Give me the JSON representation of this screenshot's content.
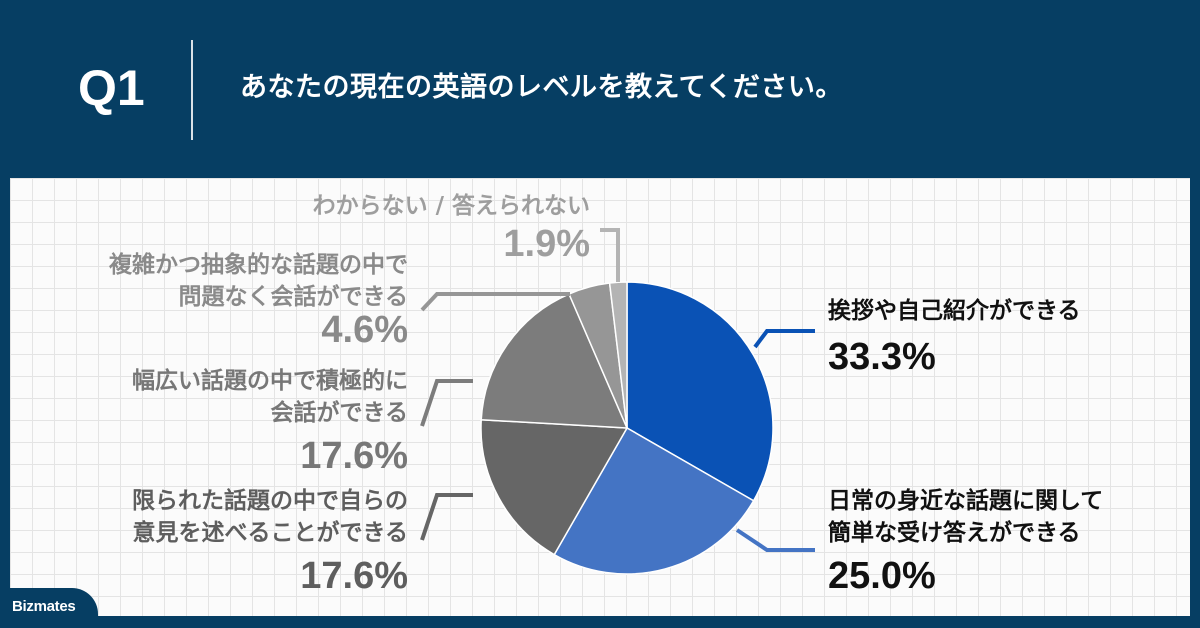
{
  "header": {
    "question_number": "Q1",
    "question_text": "あなたの現在の英語のレベルを教えてください。"
  },
  "brand": {
    "logo_text": "Bizmates"
  },
  "colors": {
    "header_bg": "#063e63",
    "panel_bg": "#fbfbfb",
    "grid": "#e4e4e4"
  },
  "chart_data": {
    "type": "pie",
    "unit": "%",
    "slices": [
      {
        "label_lines": [
          "挨拶や自己紹介ができる"
        ],
        "value": 33.3,
        "value_text": "33.3%",
        "color": "#0a52b5",
        "label_color": "#111111"
      },
      {
        "label_lines": [
          "日常の身近な話題に関して",
          "簡単な受け答えができる"
        ],
        "value": 25.0,
        "value_text": "25.0%",
        "color": "#4474c4",
        "label_color": "#111111"
      },
      {
        "label_lines": [
          "限られた話題の中で自らの",
          "意見を述べることができる"
        ],
        "value": 17.6,
        "value_text": "17.6%",
        "color": "#666666",
        "label_color": "#5e5e5e"
      },
      {
        "label_lines": [
          "幅広い話題の中で積極的に",
          "会話ができる"
        ],
        "value": 17.6,
        "value_text": "17.6%",
        "color": "#7c7c7c",
        "label_color": "#777777"
      },
      {
        "label_lines": [
          "複雑かつ抽象的な話題の中で",
          "問題なく会話ができる"
        ],
        "value": 4.6,
        "value_text": "4.6%",
        "color": "#969696",
        "label_color": "#8a8a8a"
      },
      {
        "label_lines": [
          "わからない / 答えられない"
        ],
        "value": 1.9,
        "value_text": "1.9%",
        "color": "#b4b4b4",
        "label_color": "#9e9e9e"
      }
    ]
  }
}
